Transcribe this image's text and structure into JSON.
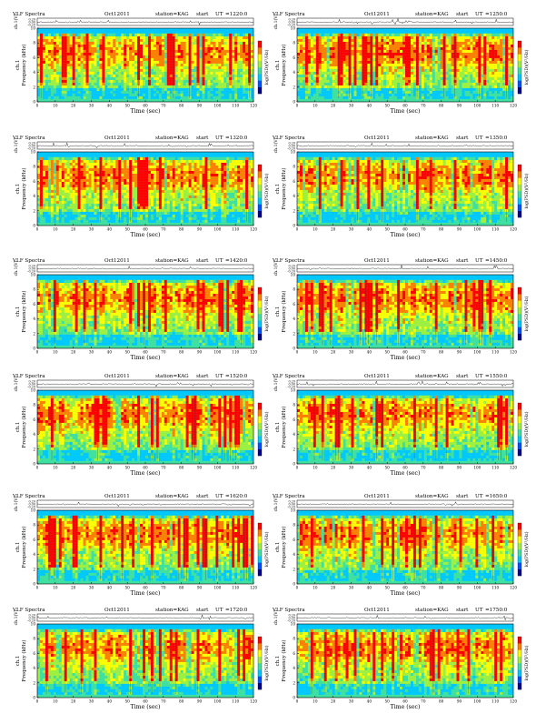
{
  "page": {
    "background": "#ffffff"
  },
  "common": {
    "heading": "VLF Spectra",
    "date": "Oct12011",
    "station": "station=KAG",
    "start_label": "start",
    "ut_label": "UT",
    "waveform_ylabel": "ch.1(V)",
    "spectrogram_ylabel": "Frequency (kHz)",
    "spectrogram_channel": "ch.1",
    "xlabel": "Time (sec)",
    "colorbar_label": "log(PSD)(V²/Hz)"
  },
  "colors": {
    "colormap": [
      "#00008b",
      "#0050ff",
      "#00c8ff",
      "#40e0a0",
      "#a0f040",
      "#ffff00",
      "#ff8000",
      "#ff0000"
    ]
  },
  "chart_data": [
    {
      "type": "heatmap",
      "panel": 1,
      "ut": "=1220:0",
      "x": {
        "range": [
          0,
          120
        ],
        "ticks": [
          0,
          10,
          20,
          30,
          40,
          50,
          60,
          70,
          80,
          90,
          100,
          110,
          120
        ]
      },
      "y": {
        "range": [
          0,
          10
        ],
        "ticks": [
          0,
          2,
          4,
          6,
          8,
          10
        ]
      },
      "waveform_ticks": [
        "0.20",
        "0.00",
        "-0.20"
      ],
      "grid": false,
      "legend": "colorbar-right"
    },
    {
      "type": "heatmap",
      "panel": 2,
      "ut": "=1250:0",
      "x": {
        "range": [
          0,
          120
        ],
        "ticks": [
          0,
          10,
          20,
          30,
          40,
          50,
          60,
          70,
          80,
          90,
          100,
          110,
          120
        ]
      },
      "y": {
        "range": [
          0,
          10
        ],
        "ticks": [
          0,
          2,
          4,
          6,
          8,
          10
        ]
      },
      "waveform_ticks": [
        "0.20",
        "0.00",
        "-0.20"
      ],
      "grid": false,
      "legend": "colorbar-right"
    },
    {
      "type": "heatmap",
      "panel": 3,
      "ut": "=1320:0",
      "x": {
        "range": [
          0,
          120
        ],
        "ticks": [
          0,
          10,
          20,
          30,
          40,
          50,
          60,
          70,
          80,
          90,
          100,
          110,
          120
        ]
      },
      "y": {
        "range": [
          0,
          10
        ],
        "ticks": [
          0,
          2,
          4,
          6,
          8,
          10
        ]
      },
      "waveform_ticks": [
        "0.20",
        "0.00",
        "-0.20"
      ],
      "grid": false,
      "legend": "colorbar-right"
    },
    {
      "type": "heatmap",
      "panel": 4,
      "ut": "=1350:0",
      "x": {
        "range": [
          0,
          120
        ],
        "ticks": [
          0,
          10,
          20,
          30,
          40,
          50,
          60,
          70,
          80,
          90,
          100,
          110,
          120
        ]
      },
      "y": {
        "range": [
          0,
          10
        ],
        "ticks": [
          0,
          2,
          4,
          6,
          8,
          10
        ]
      },
      "waveform_ticks": [
        "0.20",
        "0.00",
        "-0.20"
      ],
      "grid": false,
      "legend": "colorbar-right"
    },
    {
      "type": "heatmap",
      "panel": 5,
      "ut": "=1420:0",
      "x": {
        "range": [
          0,
          120
        ],
        "ticks": [
          0,
          10,
          20,
          30,
          40,
          50,
          60,
          70,
          80,
          90,
          100,
          110,
          120
        ]
      },
      "y": {
        "range": [
          0,
          10
        ],
        "ticks": [
          0,
          2,
          4,
          6,
          8,
          10
        ]
      },
      "waveform_ticks": [
        "0.20",
        "0.00",
        "-0.20"
      ],
      "grid": false,
      "legend": "colorbar-right"
    },
    {
      "type": "heatmap",
      "panel": 6,
      "ut": "=1450:0",
      "x": {
        "range": [
          0,
          120
        ],
        "ticks": [
          0,
          10,
          20,
          30,
          40,
          50,
          60,
          70,
          80,
          90,
          100,
          110,
          120
        ]
      },
      "y": {
        "range": [
          0,
          10
        ],
        "ticks": [
          0,
          2,
          4,
          6,
          8,
          10
        ]
      },
      "waveform_ticks": [
        "0.20",
        "0.00",
        "-0.20"
      ],
      "grid": false,
      "legend": "colorbar-right"
    },
    {
      "type": "heatmap",
      "panel": 7,
      "ut": "=1520:0",
      "x": {
        "range": [
          0,
          120
        ],
        "ticks": [
          0,
          10,
          20,
          30,
          40,
          50,
          60,
          70,
          80,
          90,
          100,
          110,
          120
        ]
      },
      "y": {
        "range": [
          0,
          10
        ],
        "ticks": [
          0,
          2,
          4,
          6,
          8,
          10
        ]
      },
      "waveform_ticks": [
        "0.20",
        "0.00",
        "-0.20"
      ],
      "grid": false,
      "legend": "colorbar-right"
    },
    {
      "type": "heatmap",
      "panel": 8,
      "ut": "=1550:0",
      "x": {
        "range": [
          0,
          120
        ],
        "ticks": [
          0,
          10,
          20,
          30,
          40,
          50,
          60,
          70,
          80,
          90,
          100,
          110,
          120
        ]
      },
      "y": {
        "range": [
          0,
          10
        ],
        "ticks": [
          0,
          2,
          4,
          6,
          8,
          10
        ]
      },
      "waveform_ticks": [
        "0.20",
        "0.00",
        "-0.20"
      ],
      "grid": false,
      "legend": "colorbar-right"
    },
    {
      "type": "heatmap",
      "panel": 9,
      "ut": "=1620:0",
      "x": {
        "range": [
          0,
          120
        ],
        "ticks": [
          0,
          10,
          20,
          30,
          40,
          50,
          60,
          70,
          80,
          90,
          100,
          110,
          120
        ]
      },
      "y": {
        "range": [
          0,
          10
        ],
        "ticks": [
          0,
          2,
          4,
          6,
          8,
          10
        ]
      },
      "waveform_ticks": [
        "0.20",
        "0.00",
        "-0.20"
      ],
      "grid": false,
      "legend": "colorbar-right"
    },
    {
      "type": "heatmap",
      "panel": 10,
      "ut": "=1650:0",
      "x": {
        "range": [
          0,
          120
        ],
        "ticks": [
          0,
          10,
          20,
          30,
          40,
          50,
          60,
          70,
          80,
          90,
          100,
          110,
          120
        ]
      },
      "y": {
        "range": [
          0,
          10
        ],
        "ticks": [
          0,
          2,
          4,
          6,
          8,
          10
        ]
      },
      "waveform_ticks": [
        "0.20",
        "0.00",
        "-0.20"
      ],
      "grid": false,
      "legend": "colorbar-right"
    },
    {
      "type": "heatmap",
      "panel": 11,
      "ut": "=1720:0",
      "x": {
        "range": [
          0,
          120
        ],
        "ticks": [
          0,
          10,
          20,
          30,
          40,
          50,
          60,
          70,
          80,
          90,
          100,
          110,
          120
        ]
      },
      "y": {
        "range": [
          0,
          10
        ],
        "ticks": [
          0,
          2,
          4,
          6,
          8,
          10
        ]
      },
      "waveform_ticks": [
        "0.20",
        "0.00",
        "-0.20"
      ],
      "grid": false,
      "legend": "colorbar-right"
    },
    {
      "type": "heatmap",
      "panel": 12,
      "ut": "=1750:0",
      "x": {
        "range": [
          0,
          120
        ],
        "ticks": [
          0,
          10,
          20,
          30,
          40,
          50,
          60,
          70,
          80,
          90,
          100,
          110,
          120
        ]
      },
      "y": {
        "range": [
          0,
          10
        ],
        "ticks": [
          0,
          2,
          4,
          6,
          8,
          10
        ]
      },
      "waveform_ticks": [
        "0.20",
        "0.00",
        "-0.20"
      ],
      "grid": false,
      "legend": "colorbar-right"
    }
  ]
}
